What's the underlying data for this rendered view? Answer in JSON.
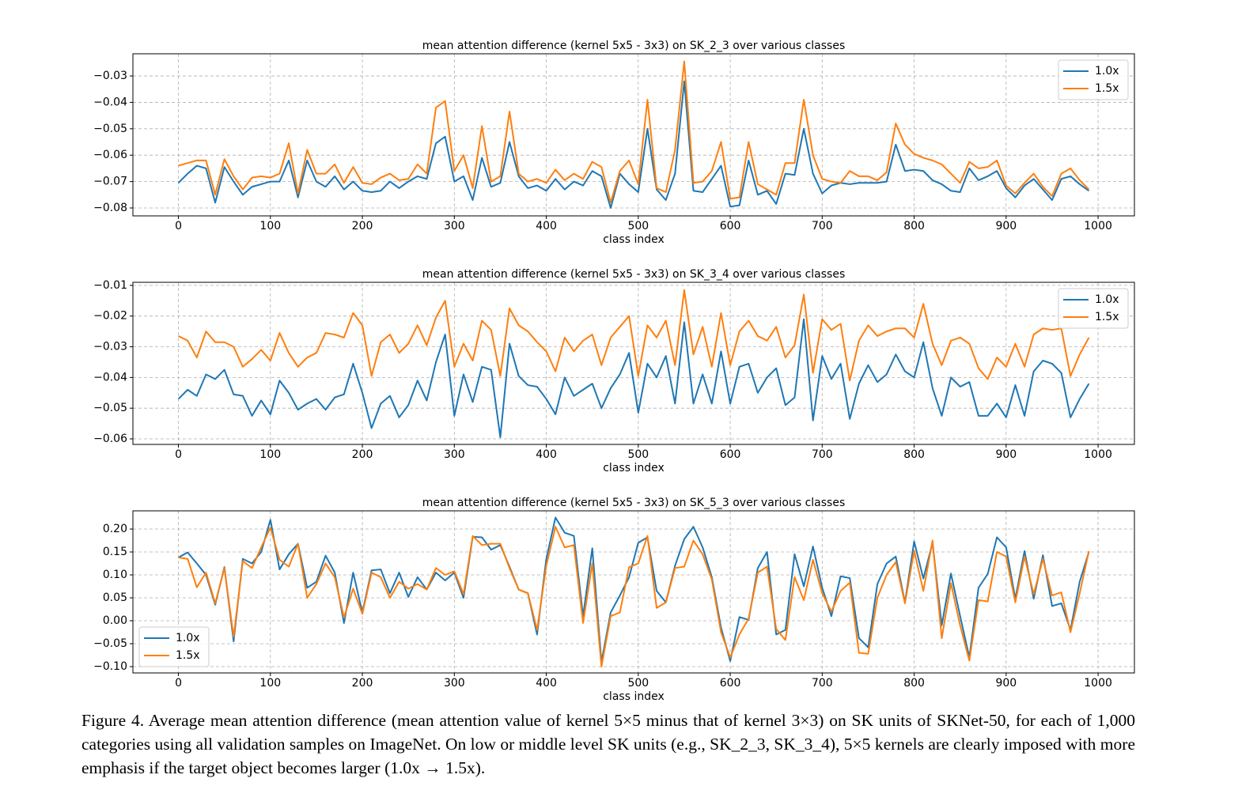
{
  "chart_data": [
    {
      "type": "line",
      "title": "mean attention difference (kernel 5x5 - 3x3) on SK_2_3 over various classes",
      "x_label": "class index",
      "x": [
        0,
        10,
        20,
        30,
        40,
        50,
        60,
        70,
        80,
        90,
        100,
        110,
        120,
        130,
        140,
        150,
        160,
        170,
        180,
        190,
        200,
        210,
        220,
        230,
        240,
        250,
        260,
        270,
        280,
        290,
        300,
        310,
        320,
        330,
        340,
        350,
        360,
        370,
        380,
        390,
        400,
        410,
        420,
        430,
        440,
        450,
        460,
        470,
        480,
        490,
        500,
        510,
        520,
        530,
        540,
        550,
        560,
        570,
        580,
        590,
        600,
        610,
        620,
        630,
        640,
        650,
        660,
        670,
        680,
        690,
        700,
        710,
        720,
        730,
        740,
        750,
        760,
        770,
        780,
        790,
        800,
        810,
        820,
        830,
        840,
        850,
        860,
        870,
        880,
        890,
        900,
        910,
        920,
        930,
        940,
        950,
        960,
        970,
        980,
        990
      ],
      "series": [
        {
          "name": "1.0x",
          "color": "#1f77b4",
          "values": [
            -0.0705,
            -0.067,
            -0.064,
            -0.065,
            -0.078,
            -0.0645,
            -0.07,
            -0.075,
            -0.072,
            -0.071,
            -0.07,
            -0.07,
            -0.062,
            -0.076,
            -0.062,
            -0.07,
            -0.072,
            -0.068,
            -0.073,
            -0.07,
            -0.0735,
            -0.074,
            -0.0735,
            -0.07,
            -0.0725,
            -0.07,
            -0.068,
            -0.069,
            -0.0555,
            -0.053,
            -0.07,
            -0.068,
            -0.077,
            -0.061,
            -0.072,
            -0.0705,
            -0.055,
            -0.068,
            -0.0725,
            -0.0715,
            -0.0735,
            -0.069,
            -0.073,
            -0.07,
            -0.0715,
            -0.066,
            -0.068,
            -0.08,
            -0.067,
            -0.071,
            -0.074,
            -0.05,
            -0.073,
            -0.077,
            -0.067,
            -0.032,
            -0.0735,
            -0.074,
            -0.069,
            -0.064,
            -0.0795,
            -0.079,
            -0.062,
            -0.075,
            -0.0735,
            -0.0785,
            -0.067,
            -0.0675,
            -0.05,
            -0.067,
            -0.0745,
            -0.0715,
            -0.0705,
            -0.071,
            -0.0705,
            -0.0705,
            -0.0705,
            -0.07,
            -0.056,
            -0.066,
            -0.0655,
            -0.066,
            -0.0695,
            -0.071,
            -0.0735,
            -0.074,
            -0.065,
            -0.0695,
            -0.068,
            -0.066,
            -0.0725,
            -0.076,
            -0.0715,
            -0.069,
            -0.073,
            -0.077,
            -0.069,
            -0.068,
            -0.071,
            -0.0735
          ]
        },
        {
          "name": "1.5x",
          "color": "#ff7f0e",
          "values": [
            -0.064,
            -0.063,
            -0.062,
            -0.062,
            -0.075,
            -0.0615,
            -0.068,
            -0.073,
            -0.0685,
            -0.068,
            -0.0685,
            -0.067,
            -0.0555,
            -0.0745,
            -0.058,
            -0.067,
            -0.067,
            -0.0635,
            -0.0705,
            -0.0645,
            -0.0705,
            -0.071,
            -0.0685,
            -0.067,
            -0.0695,
            -0.069,
            -0.0635,
            -0.067,
            -0.042,
            -0.0395,
            -0.066,
            -0.06,
            -0.0725,
            -0.049,
            -0.07,
            -0.068,
            -0.0435,
            -0.067,
            -0.07,
            -0.069,
            -0.0705,
            -0.0655,
            -0.0695,
            -0.067,
            -0.069,
            -0.0625,
            -0.0645,
            -0.078,
            -0.066,
            -0.062,
            -0.071,
            -0.039,
            -0.0725,
            -0.074,
            -0.058,
            -0.0245,
            -0.0705,
            -0.07,
            -0.066,
            -0.055,
            -0.0765,
            -0.076,
            -0.055,
            -0.071,
            -0.073,
            -0.075,
            -0.063,
            -0.063,
            -0.039,
            -0.06,
            -0.069,
            -0.07,
            -0.0705,
            -0.066,
            -0.068,
            -0.068,
            -0.0695,
            -0.0665,
            -0.048,
            -0.056,
            -0.0595,
            -0.061,
            -0.062,
            -0.0635,
            -0.067,
            -0.0705,
            -0.0625,
            -0.065,
            -0.0645,
            -0.062,
            -0.0715,
            -0.0745,
            -0.0705,
            -0.067,
            -0.072,
            -0.0755,
            -0.067,
            -0.065,
            -0.0695,
            -0.073
          ]
        }
      ],
      "xlim": [
        -49.5,
        1039.5
      ],
      "xticks": [
        0,
        100,
        200,
        300,
        400,
        500,
        600,
        700,
        800,
        900,
        1000
      ],
      "ylim": [
        -0.083,
        -0.0216
      ],
      "yticks": [
        {
          "value": -0.08,
          "label": "−0.08"
        },
        {
          "value": -0.07,
          "label": "−0.07"
        },
        {
          "value": -0.06,
          "label": "−0.06"
        },
        {
          "value": -0.05,
          "label": "−0.05"
        },
        {
          "value": -0.04,
          "label": "−0.04"
        },
        {
          "value": -0.03,
          "label": "−0.03"
        }
      ],
      "grid": true,
      "legend": "upper right"
    },
    {
      "type": "line",
      "title": "mean attention difference (kernel 5x5 - 3x3) on SK_3_4 over various classes",
      "x_label": "class index",
      "x": [
        0,
        10,
        20,
        30,
        40,
        50,
        60,
        70,
        80,
        90,
        100,
        110,
        120,
        130,
        140,
        150,
        160,
        170,
        180,
        190,
        200,
        210,
        220,
        230,
        240,
        250,
        260,
        270,
        280,
        290,
        300,
        310,
        320,
        330,
        340,
        350,
        360,
        370,
        380,
        390,
        400,
        410,
        420,
        430,
        440,
        450,
        460,
        470,
        480,
        490,
        500,
        510,
        520,
        530,
        540,
        550,
        560,
        570,
        580,
        590,
        600,
        610,
        620,
        630,
        640,
        650,
        660,
        670,
        680,
        690,
        700,
        710,
        720,
        730,
        740,
        750,
        760,
        770,
        780,
        790,
        800,
        810,
        820,
        830,
        840,
        850,
        860,
        870,
        880,
        890,
        900,
        910,
        920,
        930,
        940,
        950,
        960,
        970,
        980,
        990
      ],
      "series": [
        {
          "name": "1.0x",
          "color": "#1f77b4",
          "values": [
            -0.047,
            -0.044,
            -0.046,
            -0.039,
            -0.0405,
            -0.0375,
            -0.0455,
            -0.046,
            -0.0525,
            -0.0475,
            -0.052,
            -0.041,
            -0.045,
            -0.0505,
            -0.0485,
            -0.047,
            -0.0505,
            -0.0465,
            -0.0455,
            -0.0355,
            -0.045,
            -0.0565,
            -0.0485,
            -0.046,
            -0.053,
            -0.049,
            -0.041,
            -0.0475,
            -0.035,
            -0.026,
            -0.0525,
            -0.039,
            -0.048,
            -0.0365,
            -0.0375,
            -0.0595,
            -0.029,
            -0.0395,
            -0.0425,
            -0.043,
            -0.047,
            -0.052,
            -0.04,
            -0.046,
            -0.044,
            -0.042,
            -0.05,
            -0.0435,
            -0.039,
            -0.032,
            -0.0515,
            -0.0355,
            -0.04,
            -0.033,
            -0.0485,
            -0.022,
            -0.0485,
            -0.039,
            -0.0485,
            -0.0315,
            -0.0485,
            -0.0365,
            -0.0355,
            -0.045,
            -0.04,
            -0.037,
            -0.049,
            -0.0465,
            -0.021,
            -0.054,
            -0.033,
            -0.0405,
            -0.0355,
            -0.0535,
            -0.042,
            -0.036,
            -0.0415,
            -0.039,
            -0.0325,
            -0.038,
            -0.04,
            -0.0285,
            -0.0435,
            -0.0525,
            -0.04,
            -0.043,
            -0.0415,
            -0.0525,
            -0.0525,
            -0.0485,
            -0.053,
            -0.0425,
            -0.0525,
            -0.038,
            -0.0345,
            -0.0355,
            -0.0385,
            -0.053,
            -0.047,
            -0.042
          ]
        },
        {
          "name": "1.5x",
          "color": "#ff7f0e",
          "values": [
            -0.0265,
            -0.028,
            -0.0335,
            -0.025,
            -0.0285,
            -0.0285,
            -0.03,
            -0.0365,
            -0.034,
            -0.031,
            -0.0345,
            -0.0255,
            -0.032,
            -0.0365,
            -0.0335,
            -0.032,
            -0.0255,
            -0.026,
            -0.027,
            -0.019,
            -0.023,
            -0.0395,
            -0.0285,
            -0.026,
            -0.032,
            -0.029,
            -0.023,
            -0.0295,
            -0.0205,
            -0.015,
            -0.0365,
            -0.029,
            -0.0345,
            -0.0215,
            -0.0245,
            -0.0395,
            -0.0175,
            -0.023,
            -0.025,
            -0.0285,
            -0.0315,
            -0.038,
            -0.027,
            -0.0315,
            -0.028,
            -0.026,
            -0.036,
            -0.027,
            -0.0235,
            -0.02,
            -0.0395,
            -0.023,
            -0.027,
            -0.0215,
            -0.036,
            -0.0115,
            -0.0325,
            -0.0235,
            -0.0365,
            -0.019,
            -0.036,
            -0.025,
            -0.0215,
            -0.0265,
            -0.028,
            -0.0235,
            -0.0335,
            -0.0295,
            -0.013,
            -0.0385,
            -0.021,
            -0.0245,
            -0.0225,
            -0.041,
            -0.028,
            -0.023,
            -0.0265,
            -0.025,
            -0.024,
            -0.024,
            -0.027,
            -0.016,
            -0.029,
            -0.036,
            -0.028,
            -0.027,
            -0.029,
            -0.037,
            -0.0405,
            -0.0335,
            -0.0365,
            -0.029,
            -0.0365,
            -0.026,
            -0.024,
            -0.0245,
            -0.024,
            -0.0395,
            -0.0325,
            -0.027
          ]
        }
      ],
      "xlim": [
        -49.5,
        1039.5
      ],
      "xticks": [
        0,
        100,
        200,
        300,
        400,
        500,
        600,
        700,
        800,
        900,
        1000
      ],
      "ylim": [
        -0.0618,
        -0.009
      ],
      "yticks": [
        {
          "value": -0.06,
          "label": "−0.06"
        },
        {
          "value": -0.05,
          "label": "−0.05"
        },
        {
          "value": -0.04,
          "label": "−0.04"
        },
        {
          "value": -0.03,
          "label": "−0.03"
        },
        {
          "value": -0.02,
          "label": "−0.02"
        },
        {
          "value": -0.01,
          "label": "−0.01"
        }
      ],
      "grid": true,
      "legend": "upper right"
    },
    {
      "type": "line",
      "title": "mean attention difference (kernel 5x5 - 3x3) on SK_5_3 over various classes",
      "x_label": "class index",
      "x": [
        0,
        10,
        20,
        30,
        40,
        50,
        60,
        70,
        80,
        90,
        100,
        110,
        120,
        130,
        140,
        150,
        160,
        170,
        180,
        190,
        200,
        210,
        220,
        230,
        240,
        250,
        260,
        270,
        280,
        290,
        300,
        310,
        320,
        330,
        340,
        350,
        360,
        370,
        380,
        390,
        400,
        410,
        420,
        430,
        440,
        450,
        460,
        470,
        480,
        490,
        500,
        510,
        520,
        530,
        540,
        550,
        560,
        570,
        580,
        590,
        600,
        610,
        620,
        630,
        640,
        650,
        660,
        670,
        680,
        690,
        700,
        710,
        720,
        730,
        740,
        750,
        760,
        770,
        780,
        790,
        800,
        810,
        820,
        830,
        840,
        850,
        860,
        870,
        880,
        890,
        900,
        910,
        920,
        930,
        940,
        950,
        960,
        970,
        980,
        990
      ],
      "series": [
        {
          "name": "1.0x",
          "color": "#1f77b4",
          "values": [
            0.138,
            0.149,
            0.125,
            0.1,
            0.035,
            0.117,
            -0.045,
            0.135,
            0.125,
            0.15,
            0.22,
            0.112,
            0.145,
            0.168,
            0.072,
            0.085,
            0.142,
            0.105,
            -0.005,
            0.105,
            0.018,
            0.11,
            0.112,
            0.06,
            0.105,
            0.052,
            0.095,
            0.068,
            0.105,
            0.088,
            0.105,
            0.05,
            0.183,
            0.182,
            0.155,
            0.165,
            0.118,
            0.068,
            0.06,
            -0.03,
            0.135,
            0.225,
            0.192,
            0.185,
            0.01,
            0.158,
            -0.09,
            0.018,
            0.055,
            0.095,
            0.17,
            0.182,
            0.065,
            0.04,
            0.12,
            0.178,
            0.205,
            0.16,
            0.095,
            -0.015,
            -0.088,
            0.008,
            0.002,
            0.115,
            0.15,
            -0.03,
            -0.02,
            0.145,
            0.075,
            0.162,
            0.072,
            0.01,
            0.097,
            0.093,
            -0.038,
            -0.058,
            0.08,
            0.125,
            0.14,
            0.04,
            0.173,
            0.092,
            0.17,
            -0.01,
            0.103,
            0.01,
            -0.08,
            0.072,
            0.102,
            0.182,
            0.16,
            0.048,
            0.152,
            0.048,
            0.143,
            0.032,
            0.038,
            -0.02,
            0.085,
            0.15
          ]
        },
        {
          "name": "1.5x",
          "color": "#ff7f0e",
          "values": [
            0.138,
            0.135,
            0.073,
            0.105,
            0.038,
            0.115,
            -0.035,
            0.13,
            0.115,
            0.16,
            0.203,
            0.133,
            0.118,
            0.168,
            0.05,
            0.08,
            0.125,
            0.095,
            0.007,
            0.07,
            0.015,
            0.105,
            0.095,
            0.05,
            0.085,
            0.07,
            0.08,
            0.068,
            0.115,
            0.1,
            0.108,
            0.058,
            0.185,
            0.165,
            0.168,
            0.168,
            0.115,
            0.068,
            0.06,
            -0.02,
            0.12,
            0.205,
            0.16,
            0.165,
            -0.005,
            0.125,
            -0.1,
            0.01,
            0.018,
            0.117,
            0.125,
            0.185,
            0.028,
            0.04,
            0.115,
            0.118,
            0.175,
            0.145,
            0.09,
            -0.025,
            -0.08,
            -0.03,
            0.005,
            0.105,
            0.118,
            -0.018,
            -0.042,
            0.095,
            0.045,
            0.133,
            0.06,
            0.02,
            0.065,
            0.083,
            -0.07,
            -0.072,
            0.05,
            0.1,
            0.128,
            0.038,
            0.153,
            0.065,
            0.175,
            -0.038,
            0.082,
            -0.01,
            -0.087,
            0.045,
            0.042,
            0.15,
            0.14,
            0.04,
            0.14,
            0.058,
            0.135,
            0.055,
            0.062,
            -0.025,
            0.06,
            0.152
          ]
        }
      ],
      "xlim": [
        -49.5,
        1039.5
      ],
      "xticks": [
        0,
        100,
        200,
        300,
        400,
        500,
        600,
        700,
        800,
        900,
        1000
      ],
      "ylim": [
        -0.1138,
        0.2397
      ],
      "yticks": [
        {
          "value": -0.1,
          "label": "−0.10"
        },
        {
          "value": -0.05,
          "label": "−0.05"
        },
        {
          "value": 0,
          "label": "0.00"
        },
        {
          "value": 0.05,
          "label": "0.05"
        },
        {
          "value": 0.1,
          "label": "0.10"
        },
        {
          "value": 0.15,
          "label": "0.15"
        },
        {
          "value": 0.2,
          "label": "0.20"
        }
      ],
      "grid": true,
      "legend": "lower left"
    }
  ],
  "caption": "Figure 4. Average mean attention difference (mean attention value of kernel 5×5 minus that of kernel 3×3) on SK units of SKNet-50, for each of 1,000 categories using all validation samples on ImageNet. On low or middle level SK units (e.g., SK_2_3, SK_3_4), 5×5 kernels are clearly imposed with more emphasis if the target object becomes larger (1.0x → 1.5x)."
}
